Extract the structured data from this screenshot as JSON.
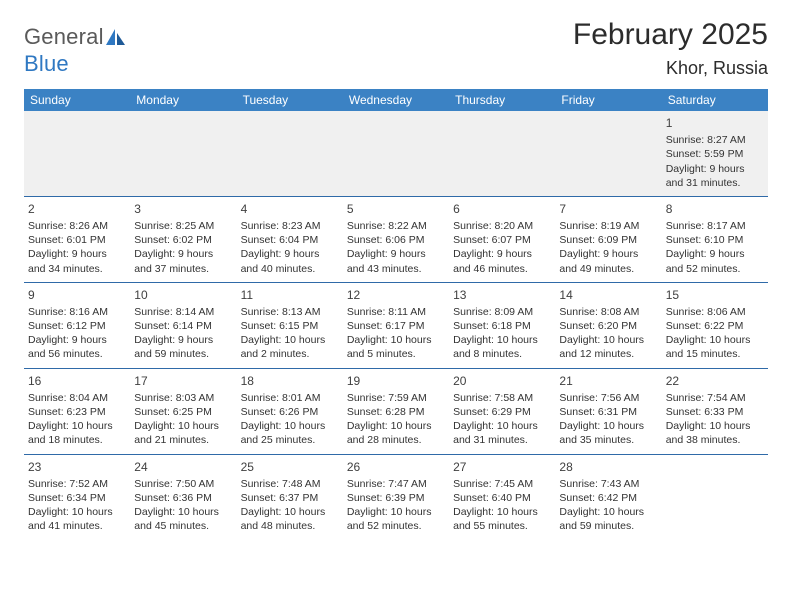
{
  "brand": {
    "general": "General",
    "blue": "Blue"
  },
  "title": "February 2025",
  "location": "Khor, Russia",
  "colors": {
    "header_bg": "#3b82c4",
    "header_text": "#ffffff",
    "row_divider": "#2f6aa8",
    "first_row_bg": "#f0f0f0",
    "body_text": "#333333",
    "brand_gray": "#5a5a5a",
    "brand_blue": "#2f78c2"
  },
  "layout": {
    "columns": 7,
    "rows": 5,
    "cell_font_size_pt": 8,
    "header_font_size_pt": 9,
    "title_font_size_pt": 22,
    "location_font_size_pt": 14
  },
  "weekdays": [
    "Sunday",
    "Monday",
    "Tuesday",
    "Wednesday",
    "Thursday",
    "Friday",
    "Saturday"
  ],
  "weeks": [
    [
      null,
      null,
      null,
      null,
      null,
      null,
      {
        "day": "1",
        "sunrise": "Sunrise: 8:27 AM",
        "sunset": "Sunset: 5:59 PM",
        "daylight": "Daylight: 9 hours and 31 minutes."
      }
    ],
    [
      {
        "day": "2",
        "sunrise": "Sunrise: 8:26 AM",
        "sunset": "Sunset: 6:01 PM",
        "daylight": "Daylight: 9 hours and 34 minutes."
      },
      {
        "day": "3",
        "sunrise": "Sunrise: 8:25 AM",
        "sunset": "Sunset: 6:02 PM",
        "daylight": "Daylight: 9 hours and 37 minutes."
      },
      {
        "day": "4",
        "sunrise": "Sunrise: 8:23 AM",
        "sunset": "Sunset: 6:04 PM",
        "daylight": "Daylight: 9 hours and 40 minutes."
      },
      {
        "day": "5",
        "sunrise": "Sunrise: 8:22 AM",
        "sunset": "Sunset: 6:06 PM",
        "daylight": "Daylight: 9 hours and 43 minutes."
      },
      {
        "day": "6",
        "sunrise": "Sunrise: 8:20 AM",
        "sunset": "Sunset: 6:07 PM",
        "daylight": "Daylight: 9 hours and 46 minutes."
      },
      {
        "day": "7",
        "sunrise": "Sunrise: 8:19 AM",
        "sunset": "Sunset: 6:09 PM",
        "daylight": "Daylight: 9 hours and 49 minutes."
      },
      {
        "day": "8",
        "sunrise": "Sunrise: 8:17 AM",
        "sunset": "Sunset: 6:10 PM",
        "daylight": "Daylight: 9 hours and 52 minutes."
      }
    ],
    [
      {
        "day": "9",
        "sunrise": "Sunrise: 8:16 AM",
        "sunset": "Sunset: 6:12 PM",
        "daylight": "Daylight: 9 hours and 56 minutes."
      },
      {
        "day": "10",
        "sunrise": "Sunrise: 8:14 AM",
        "sunset": "Sunset: 6:14 PM",
        "daylight": "Daylight: 9 hours and 59 minutes."
      },
      {
        "day": "11",
        "sunrise": "Sunrise: 8:13 AM",
        "sunset": "Sunset: 6:15 PM",
        "daylight": "Daylight: 10 hours and 2 minutes."
      },
      {
        "day": "12",
        "sunrise": "Sunrise: 8:11 AM",
        "sunset": "Sunset: 6:17 PM",
        "daylight": "Daylight: 10 hours and 5 minutes."
      },
      {
        "day": "13",
        "sunrise": "Sunrise: 8:09 AM",
        "sunset": "Sunset: 6:18 PM",
        "daylight": "Daylight: 10 hours and 8 minutes."
      },
      {
        "day": "14",
        "sunrise": "Sunrise: 8:08 AM",
        "sunset": "Sunset: 6:20 PM",
        "daylight": "Daylight: 10 hours and 12 minutes."
      },
      {
        "day": "15",
        "sunrise": "Sunrise: 8:06 AM",
        "sunset": "Sunset: 6:22 PM",
        "daylight": "Daylight: 10 hours and 15 minutes."
      }
    ],
    [
      {
        "day": "16",
        "sunrise": "Sunrise: 8:04 AM",
        "sunset": "Sunset: 6:23 PM",
        "daylight": "Daylight: 10 hours and 18 minutes."
      },
      {
        "day": "17",
        "sunrise": "Sunrise: 8:03 AM",
        "sunset": "Sunset: 6:25 PM",
        "daylight": "Daylight: 10 hours and 21 minutes."
      },
      {
        "day": "18",
        "sunrise": "Sunrise: 8:01 AM",
        "sunset": "Sunset: 6:26 PM",
        "daylight": "Daylight: 10 hours and 25 minutes."
      },
      {
        "day": "19",
        "sunrise": "Sunrise: 7:59 AM",
        "sunset": "Sunset: 6:28 PM",
        "daylight": "Daylight: 10 hours and 28 minutes."
      },
      {
        "day": "20",
        "sunrise": "Sunrise: 7:58 AM",
        "sunset": "Sunset: 6:29 PM",
        "daylight": "Daylight: 10 hours and 31 minutes."
      },
      {
        "day": "21",
        "sunrise": "Sunrise: 7:56 AM",
        "sunset": "Sunset: 6:31 PM",
        "daylight": "Daylight: 10 hours and 35 minutes."
      },
      {
        "day": "22",
        "sunrise": "Sunrise: 7:54 AM",
        "sunset": "Sunset: 6:33 PM",
        "daylight": "Daylight: 10 hours and 38 minutes."
      }
    ],
    [
      {
        "day": "23",
        "sunrise": "Sunrise: 7:52 AM",
        "sunset": "Sunset: 6:34 PM",
        "daylight": "Daylight: 10 hours and 41 minutes."
      },
      {
        "day": "24",
        "sunrise": "Sunrise: 7:50 AM",
        "sunset": "Sunset: 6:36 PM",
        "daylight": "Daylight: 10 hours and 45 minutes."
      },
      {
        "day": "25",
        "sunrise": "Sunrise: 7:48 AM",
        "sunset": "Sunset: 6:37 PM",
        "daylight": "Daylight: 10 hours and 48 minutes."
      },
      {
        "day": "26",
        "sunrise": "Sunrise: 7:47 AM",
        "sunset": "Sunset: 6:39 PM",
        "daylight": "Daylight: 10 hours and 52 minutes."
      },
      {
        "day": "27",
        "sunrise": "Sunrise: 7:45 AM",
        "sunset": "Sunset: 6:40 PM",
        "daylight": "Daylight: 10 hours and 55 minutes."
      },
      {
        "day": "28",
        "sunrise": "Sunrise: 7:43 AM",
        "sunset": "Sunset: 6:42 PM",
        "daylight": "Daylight: 10 hours and 59 minutes."
      },
      null
    ]
  ]
}
